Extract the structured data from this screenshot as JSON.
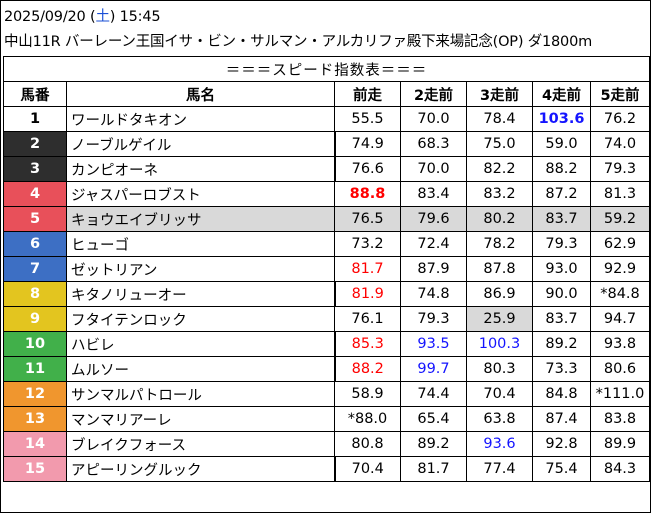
{
  "header": {
    "datetime_prefix": "2025/09/20 (",
    "weekday": "土",
    "datetime_suffix": ") 15:45",
    "race_line": "中山11R バーレーン王国イサ・ビン・サルマン・アルカリファ殿下来場記念(OP) ダ1800m"
  },
  "table": {
    "caption": "＝＝＝スピード指数表＝＝＝",
    "columns": [
      "馬番",
      "馬名",
      "前走",
      "2走前",
      "3走前",
      "4走前",
      "5走前"
    ],
    "rows": [
      {
        "no": "1",
        "name": "ワールドタキオン",
        "vals": [
          "55.5",
          "70.0",
          "78.4",
          "103.6",
          "76.2"
        ]
      },
      {
        "no": "2",
        "name": "ノーブルゲイル",
        "vals": [
          "74.9",
          "68.3",
          "75.0",
          "59.0",
          "74.0"
        ]
      },
      {
        "no": "3",
        "name": "カンピオーネ",
        "vals": [
          "76.6",
          "70.0",
          "82.2",
          "88.2",
          "79.3"
        ]
      },
      {
        "no": "4",
        "name": "ジャスパーロブスト",
        "vals": [
          "88.8",
          "83.4",
          "83.2",
          "87.2",
          "81.3"
        ]
      },
      {
        "no": "5",
        "name": "キョウエイブリッサ",
        "vals": [
          "76.5",
          "79.6",
          "80.2",
          "83.7",
          "59.2"
        ]
      },
      {
        "no": "6",
        "name": "ヒューゴ",
        "vals": [
          "73.2",
          "72.4",
          "78.2",
          "79.3",
          "62.9"
        ]
      },
      {
        "no": "7",
        "name": "ゼットリアン",
        "vals": [
          "81.7",
          "87.9",
          "87.8",
          "93.0",
          "92.9"
        ]
      },
      {
        "no": "8",
        "name": "キタノリューオー",
        "vals": [
          "81.9",
          "74.8",
          "86.9",
          "90.0",
          "*84.8"
        ]
      },
      {
        "no": "9",
        "name": "フタイテンロック",
        "vals": [
          "76.1",
          "79.3",
          "25.9",
          "83.7",
          "94.7"
        ]
      },
      {
        "no": "10",
        "name": "ハビレ",
        "vals": [
          "85.3",
          "93.5",
          "100.3",
          "89.2",
          "93.8"
        ]
      },
      {
        "no": "11",
        "name": "ムルソー",
        "vals": [
          "88.2",
          "99.7",
          "80.3",
          "73.3",
          "80.6"
        ]
      },
      {
        "no": "12",
        "name": "サンマルパトロール",
        "vals": [
          "58.9",
          "74.4",
          "70.4",
          "84.8",
          "*111.0"
        ]
      },
      {
        "no": "13",
        "name": "マンマリアーレ",
        "vals": [
          "*88.0",
          "65.4",
          "63.8",
          "87.4",
          "83.8"
        ]
      },
      {
        "no": "14",
        "name": "ブレイクフォース",
        "vals": [
          "80.8",
          "89.2",
          "93.6",
          "92.8",
          "89.9"
        ]
      },
      {
        "no": "15",
        "name": "アピーリングルック",
        "vals": [
          "70.4",
          "81.7",
          "77.4",
          "75.4",
          "84.3"
        ]
      }
    ]
  },
  "colors": {
    "waku": {
      "1": {
        "bg": "#ffffff",
        "fg": "#000000"
      },
      "2": {
        "bg": "#2e2e2e",
        "fg": "#ffffff"
      },
      "3": {
        "bg": "#2e2e2e",
        "fg": "#ffffff"
      },
      "4": {
        "bg": "#e8505a",
        "fg": "#ffffff"
      },
      "5": {
        "bg": "#e8505a",
        "fg": "#ffffff"
      },
      "6": {
        "bg": "#3d6fc4",
        "fg": "#ffffff"
      },
      "7": {
        "bg": "#3d6fc4",
        "fg": "#ffffff"
      },
      "8": {
        "bg": "#e3c51f",
        "fg": "#ffffff"
      },
      "9": {
        "bg": "#e3c51f",
        "fg": "#ffffff"
      },
      "10": {
        "bg": "#41b04a",
        "fg": "#ffffff"
      },
      "11": {
        "bg": "#41b04a",
        "fg": "#ffffff"
      },
      "12": {
        "bg": "#f0962e",
        "fg": "#ffffff"
      },
      "13": {
        "bg": "#f0962e",
        "fg": "#ffffff"
      },
      "14": {
        "bg": "#f29aad",
        "fg": "#ffffff"
      },
      "15": {
        "bg": "#f29aad",
        "fg": "#ffffff"
      }
    },
    "value_red": "#ff0000",
    "value_blue": "#1414ff",
    "highlight_gray": "#d9d9d9"
  },
  "styling": {
    "red_cells": [
      "4-0",
      "7-0",
      "8-0",
      "10-0",
      "11-0"
    ],
    "bold_red_cells": [
      "4-0"
    ],
    "blue_cells": [
      "10-1",
      "10-2",
      "11-1",
      "14-2"
    ],
    "bold_blue_cells": [
      "1-3"
    ],
    "gray_cells": [
      "9-2"
    ],
    "gray_rows": [
      "5"
    ],
    "thick_divider_rows": [
      "2",
      "3",
      "8",
      "10",
      "11",
      "15"
    ]
  }
}
